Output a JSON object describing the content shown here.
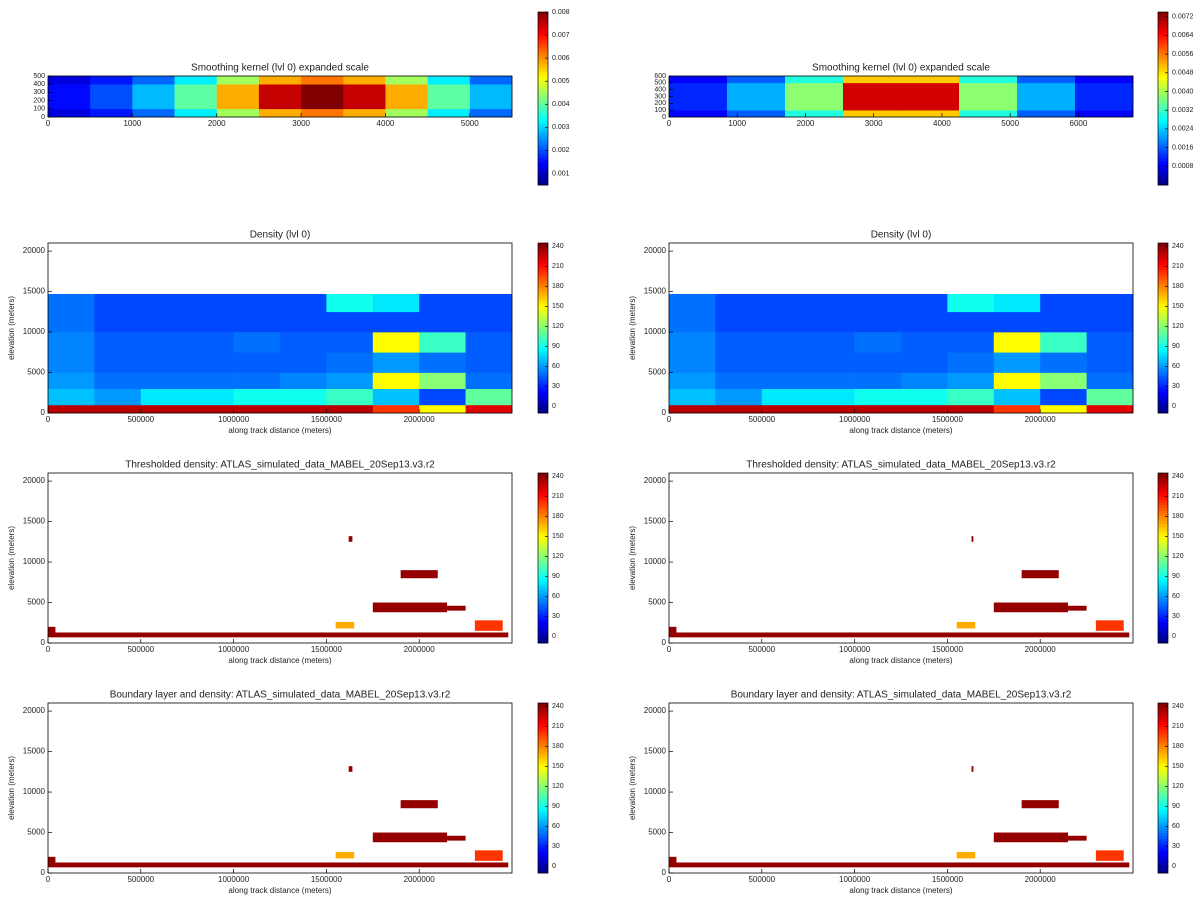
{
  "chart_data": [
    {
      "type": "heatmap",
      "title": "Smoothing kernel (lvl 0) expanded scale",
      "x_edges": [
        0,
        500,
        1000,
        1500,
        2000,
        2500,
        3000,
        3500,
        4000,
        4500,
        5000,
        5500
      ],
      "y_edges": [
        0,
        100,
        400,
        500
      ],
      "z": [
        [
          0.0012,
          0.0016,
          0.0022,
          0.0032,
          0.0045,
          0.0058,
          0.0062,
          0.0058,
          0.0045,
          0.0032,
          0.0022
        ],
        [
          0.0015,
          0.002,
          0.0028,
          0.004,
          0.0058,
          0.0075,
          0.008,
          0.0075,
          0.0058,
          0.004,
          0.0028
        ],
        [
          0.0012,
          0.0016,
          0.0022,
          0.0032,
          0.0045,
          0.0058,
          0.0062,
          0.0058,
          0.0045,
          0.0032,
          0.0022
        ]
      ],
      "xlim": [
        0,
        5500
      ],
      "xticks": [
        0,
        1000,
        2000,
        3000,
        4000,
        5000
      ],
      "ylim": [
        0,
        500
      ],
      "yticks": [
        0,
        100,
        200,
        300,
        400,
        500
      ],
      "clim": [
        0.0005,
        0.008
      ],
      "cticks": [
        0.001,
        0.002,
        0.003,
        0.004,
        0.005,
        0.006,
        0.007,
        0.008
      ],
      "colormap": "jet"
    },
    {
      "type": "heatmap",
      "title": "Smoothing kernel (lvl 0) expanded scale",
      "x_edges": [
        0,
        850,
        1700,
        2550,
        3400,
        4250,
        5100,
        5950,
        6800
      ],
      "y_edges": [
        0,
        100,
        500,
        600
      ],
      "z": [
        [
          0.0009,
          0.0016,
          0.003,
          0.005,
          0.005,
          0.003,
          0.0016,
          0.0009
        ],
        [
          0.0012,
          0.0022,
          0.0038,
          0.0068,
          0.0068,
          0.0038,
          0.0022,
          0.0012
        ],
        [
          0.0009,
          0.0016,
          0.003,
          0.005,
          0.005,
          0.003,
          0.0016,
          0.0009
        ]
      ],
      "xlim": [
        0,
        6800
      ],
      "xticks": [
        0,
        1000,
        2000,
        3000,
        4000,
        5000,
        6000
      ],
      "ylim": [
        0,
        600
      ],
      "yticks": [
        0,
        100,
        200,
        300,
        400,
        500,
        600
      ],
      "clim": [
        0,
        0.0074
      ],
      "cticks": [
        0.0008,
        0.0016,
        0.0024,
        0.0032,
        {
          "value": 0.004,
          "label": "0.0040"
        },
        0.0048,
        0.0056,
        0.0064,
        0.0072
      ],
      "colormap": "jet"
    },
    {
      "type": "heatmap",
      "title": "Density (lvl 0)",
      "xlabel": "along track distance (meters)",
      "ylabel": "elevation (meters)",
      "x_edges": [
        0,
        250000,
        500000,
        750000,
        1000000,
        1250000,
        1500000,
        1750000,
        2000000,
        2250000,
        2500000
      ],
      "y_edges": [
        0,
        1000,
        3000,
        5000,
        7500,
        10000,
        12500,
        14700
      ],
      "z": [
        [
          230,
          230,
          230,
          230,
          230,
          230,
          230,
          200,
          150,
          220
        ],
        [
          70,
          60,
          80,
          80,
          90,
          90,
          100,
          70,
          40,
          110
        ],
        [
          60,
          50,
          50,
          50,
          50,
          55,
          60,
          150,
          120,
          50
        ],
        [
          55,
          45,
          45,
          45,
          45,
          45,
          50,
          60,
          50,
          45
        ],
        [
          55,
          45,
          45,
          45,
          50,
          45,
          45,
          150,
          100,
          45
        ],
        [
          50,
          40,
          40,
          40,
          40,
          40,
          40,
          40,
          40,
          40
        ],
        [
          50,
          40,
          40,
          40,
          40,
          40,
          90,
          80,
          40,
          40
        ]
      ],
      "xlim": [
        0,
        2500000
      ],
      "xticks": [
        0,
        500000,
        1000000,
        1500000,
        2000000
      ],
      "ylim": [
        0,
        21000
      ],
      "yticks": [
        0,
        5000,
        10000,
        15000,
        20000
      ],
      "clim": [
        -10,
        245
      ],
      "cticks": [
        0,
        30,
        60,
        90,
        120,
        150,
        180,
        210,
        240
      ],
      "colormap": "jet"
    },
    {
      "type": "heatmap",
      "title": "Density (lvl 0)",
      "xlabel": "along track distance (meters)",
      "ylabel": "elevation (meters)",
      "x_edges": [
        0,
        250000,
        500000,
        750000,
        1000000,
        1250000,
        1500000,
        1750000,
        2000000,
        2250000,
        2500000
      ],
      "y_edges": [
        0,
        1000,
        3000,
        5000,
        7500,
        10000,
        12500,
        14700
      ],
      "z": [
        [
          230,
          230,
          230,
          230,
          230,
          230,
          230,
          200,
          150,
          220
        ],
        [
          70,
          60,
          80,
          80,
          90,
          90,
          100,
          70,
          40,
          110
        ],
        [
          60,
          50,
          50,
          50,
          50,
          55,
          60,
          150,
          120,
          50
        ],
        [
          55,
          45,
          45,
          45,
          45,
          45,
          50,
          60,
          50,
          45
        ],
        [
          55,
          45,
          45,
          45,
          50,
          45,
          45,
          150,
          100,
          45
        ],
        [
          50,
          40,
          40,
          40,
          40,
          40,
          40,
          40,
          40,
          40
        ],
        [
          50,
          40,
          40,
          40,
          40,
          40,
          90,
          80,
          40,
          40
        ]
      ],
      "xlim": [
        0,
        2500000
      ],
      "xticks": [
        0,
        500000,
        1000000,
        1500000,
        2000000
      ],
      "ylim": [
        0,
        21000
      ],
      "yticks": [
        0,
        5000,
        10000,
        15000,
        20000
      ],
      "clim": [
        -10,
        245
      ],
      "cticks": [
        0,
        30,
        60,
        90,
        120,
        150,
        180,
        210,
        240
      ],
      "colormap": "jet"
    },
    {
      "type": "boxes",
      "title": "Thresholded density: ATLAS_simulated_data_MABEL_20Sep13.v3.r2",
      "xlabel": "along track distance (meters)",
      "ylabel": "elevation (meters)",
      "x0": [
        0,
        0,
        1550000,
        1620000,
        1750000,
        1900000,
        2150000,
        2300000
      ],
      "x1": [
        2480000,
        40000,
        1650000,
        1640000,
        2150000,
        2100000,
        2250000,
        2450000
      ],
      "y0": [
        700,
        1300,
        1800,
        12500,
        3800,
        8000,
        4000,
        1500
      ],
      "y1": [
        1300,
        2000,
        2600,
        13200,
        5000,
        9000,
        4600,
        2800
      ],
      "values": [
        240,
        240,
        170,
        240,
        240,
        240,
        240,
        200
      ],
      "xlim": [
        0,
        2500000
      ],
      "xticks": [
        0,
        500000,
        1000000,
        1500000,
        2000000
      ],
      "ylim": [
        0,
        21000
      ],
      "yticks": [
        0,
        5000,
        10000,
        15000,
        20000
      ],
      "clim": [
        -10,
        245
      ],
      "cticks": [
        0,
        30,
        60,
        90,
        120,
        150,
        180,
        210,
        240
      ],
      "colormap": "jet"
    },
    {
      "type": "boxes",
      "title": "Thresholded density: ATLAS_simulated_data_MABEL_20Sep13.v3.r2",
      "xlabel": "along track distance (meters)",
      "ylabel": "elevation (meters)",
      "x0": [
        0,
        0,
        1550000,
        1630000,
        1750000,
        1900000,
        2150000,
        2300000
      ],
      "x1": [
        2480000,
        40000,
        1650000,
        1640000,
        2150000,
        2100000,
        2250000,
        2450000
      ],
      "y0": [
        700,
        1300,
        1800,
        12500,
        3800,
        8000,
        4000,
        1500
      ],
      "y1": [
        1300,
        2000,
        2600,
        13200,
        5000,
        9000,
        4600,
        2800
      ],
      "values": [
        240,
        240,
        170,
        240,
        240,
        240,
        240,
        200
      ],
      "xlim": [
        0,
        2500000
      ],
      "xticks": [
        0,
        500000,
        1000000,
        1500000,
        2000000
      ],
      "ylim": [
        0,
        21000
      ],
      "yticks": [
        0,
        5000,
        10000,
        15000,
        20000
      ],
      "clim": [
        -10,
        245
      ],
      "cticks": [
        0,
        30,
        60,
        90,
        120,
        150,
        180,
        210,
        240
      ],
      "colormap": "jet"
    },
    {
      "type": "boxes",
      "title": "Boundary layer and density: ATLAS_simulated_data_MABEL_20Sep13.v3.r2",
      "xlabel": "along track distance (meters)",
      "ylabel": "elevation (meters)",
      "x0": [
        0,
        0,
        1550000,
        1620000,
        1750000,
        1900000,
        2150000,
        2300000
      ],
      "x1": [
        2480000,
        40000,
        1650000,
        1640000,
        2150000,
        2100000,
        2250000,
        2450000
      ],
      "y0": [
        700,
        1300,
        1800,
        12500,
        3800,
        8000,
        4000,
        1500
      ],
      "y1": [
        1300,
        2000,
        2600,
        13200,
        5000,
        9000,
        4600,
        2800
      ],
      "values": [
        240,
        240,
        170,
        240,
        240,
        240,
        240,
        200
      ],
      "xlim": [
        0,
        2500000
      ],
      "xticks": [
        0,
        500000,
        1000000,
        1500000,
        2000000
      ],
      "ylim": [
        0,
        21000
      ],
      "yticks": [
        0,
        5000,
        10000,
        15000,
        20000
      ],
      "clim": [
        -10,
        245
      ],
      "cticks": [
        0,
        30,
        60,
        90,
        120,
        150,
        180,
        210,
        240
      ],
      "colormap": "jet"
    },
    {
      "type": "boxes",
      "title": "Boundary layer and density: ATLAS_simulated_data_MABEL_20Sep13.v3.r2",
      "xlabel": "along track distance (meters)",
      "ylabel": "elevation (meters)",
      "x0": [
        0,
        0,
        1550000,
        1630000,
        1750000,
        1900000,
        2150000,
        2300000
      ],
      "x1": [
        2480000,
        40000,
        1650000,
        1640000,
        2150000,
        2100000,
        2250000,
        2450000
      ],
      "y0": [
        700,
        1300,
        1800,
        12500,
        3800,
        8000,
        4000,
        1500
      ],
      "y1": [
        1300,
        2000,
        2600,
        13200,
        5000,
        9000,
        4600,
        2800
      ],
      "values": [
        240,
        240,
        170,
        240,
        240,
        240,
        240,
        200
      ],
      "xlim": [
        0,
        2500000
      ],
      "xticks": [
        0,
        500000,
        1000000,
        1500000,
        2000000
      ],
      "ylim": [
        0,
        21000
      ],
      "yticks": [
        0,
        5000,
        10000,
        15000,
        20000
      ],
      "clim": [
        -10,
        245
      ],
      "cticks": [
        0,
        30,
        60,
        90,
        120,
        150,
        180,
        210,
        240
      ],
      "colormap": "jet"
    }
  ]
}
